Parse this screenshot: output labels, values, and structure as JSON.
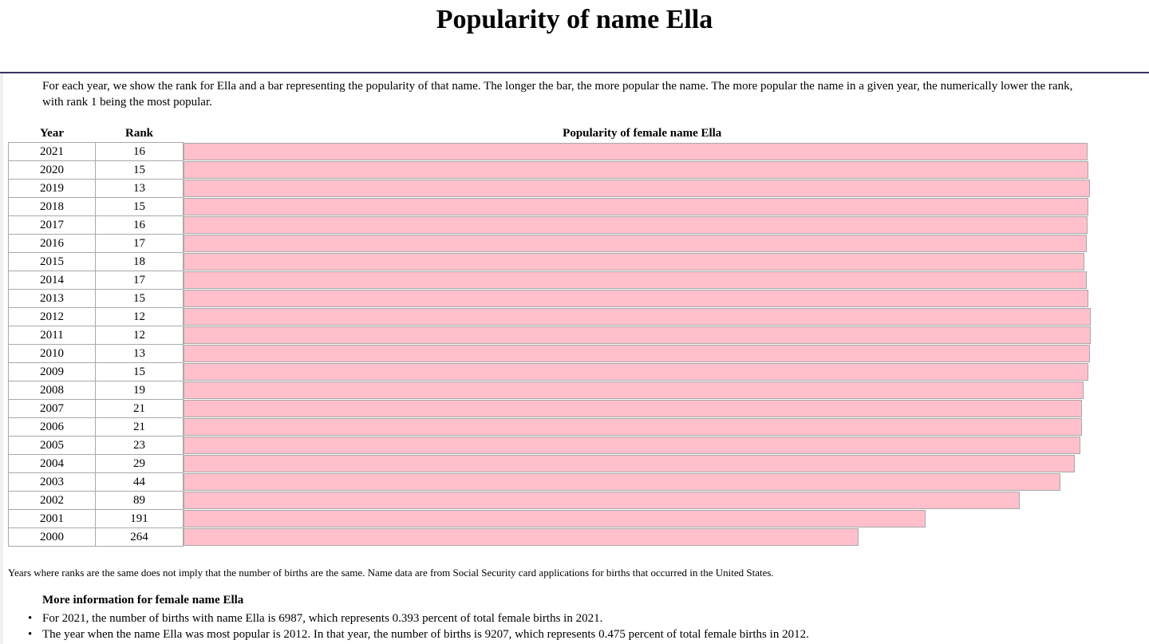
{
  "page": {
    "title": "Popularity of name Ella",
    "intro": "For each year, we show the rank for Ella and a bar representing the popularity of that name. The longer the bar, the more popular the name. The more popular the name in a given year, the numerically lower the rank, with rank 1 being the most popular."
  },
  "table": {
    "headers": {
      "year": "Year",
      "rank": "Rank",
      "popularity": "Popularity of female name Ella"
    },
    "bar_color": "#ffc0cb",
    "rows": [
      {
        "year": "2021",
        "rank": "16",
        "popularity": 0.985
      },
      {
        "year": "2020",
        "rank": "15",
        "popularity": 0.986
      },
      {
        "year": "2019",
        "rank": "13",
        "popularity": 0.988
      },
      {
        "year": "2018",
        "rank": "15",
        "popularity": 0.986
      },
      {
        "year": "2017",
        "rank": "16",
        "popularity": 0.985
      },
      {
        "year": "2016",
        "rank": "17",
        "popularity": 0.984
      },
      {
        "year": "2015",
        "rank": "18",
        "popularity": 0.982
      },
      {
        "year": "2014",
        "rank": "17",
        "popularity": 0.984
      },
      {
        "year": "2013",
        "rank": "15",
        "popularity": 0.986
      },
      {
        "year": "2012",
        "rank": "12",
        "popularity": 0.989
      },
      {
        "year": "2011",
        "rank": "12",
        "popularity": 0.989
      },
      {
        "year": "2010",
        "rank": "13",
        "popularity": 0.988
      },
      {
        "year": "2009",
        "rank": "15",
        "popularity": 0.986
      },
      {
        "year": "2008",
        "rank": "19",
        "popularity": 0.981
      },
      {
        "year": "2007",
        "rank": "21",
        "popularity": 0.979
      },
      {
        "year": "2006",
        "rank": "21",
        "popularity": 0.979
      },
      {
        "year": "2005",
        "rank": "23",
        "popularity": 0.977
      },
      {
        "year": "2004",
        "rank": "29",
        "popularity": 0.971
      },
      {
        "year": "2003",
        "rank": "44",
        "popularity": 0.956
      },
      {
        "year": "2002",
        "rank": "89",
        "popularity": 0.911
      },
      {
        "year": "2001",
        "rank": "191",
        "popularity": 0.809
      },
      {
        "year": "2000",
        "rank": "264",
        "popularity": 0.736
      }
    ]
  },
  "footnote": "Years where ranks are the same does not imply that the number of births are the same. Name data are from Social Security card applications for births that occurred in the United States.",
  "more_info": {
    "heading": "More information for female name Ella",
    "items": [
      "For 2021, the number of births with name Ella is 6987, which represents 0.393 percent of total female births in 2021.",
      "The year when the name Ella was most popular is 2012. In that year, the number of births is 9207, which represents 0.475 percent of total female births in 2012."
    ]
  }
}
